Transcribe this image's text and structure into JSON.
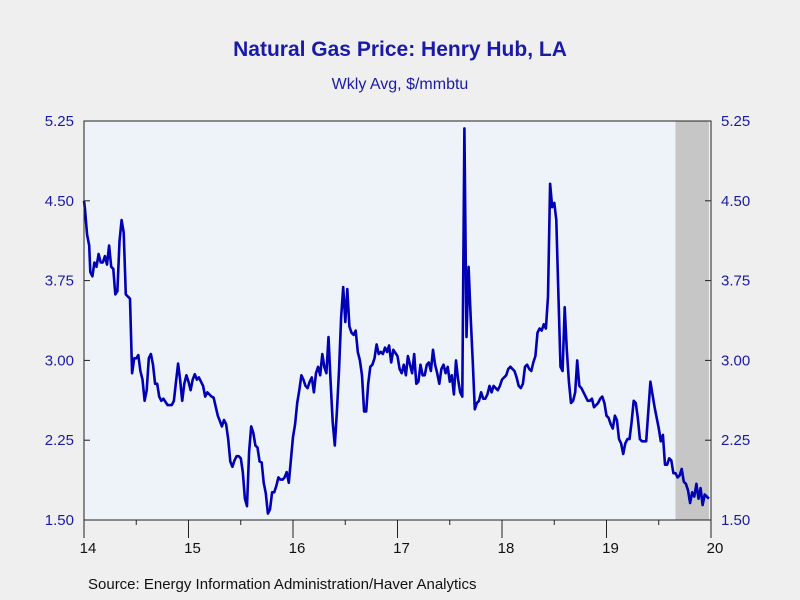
{
  "colors": {
    "background": "#efefef",
    "plot_background": "#eef3fa",
    "text_blue": "#1a1aa8",
    "line": "#0000b4",
    "recession_shading": "#c6c6c6",
    "axis": "#222222"
  },
  "source": "Source:  Energy Information Administration/Haver Analytics",
  "chart_data": {
    "type": "line",
    "title": "Natural Gas Price: Henry Hub, LA",
    "subtitle": "Wkly Avg, $/mmbtu",
    "xlabel": "",
    "ylabel": "",
    "x_tick_labels": [
      "14",
      "15",
      "16",
      "17",
      "18",
      "19",
      "20"
    ],
    "x_range": [
      2014.0,
      2020.0
    ],
    "ylim": [
      1.5,
      5.25
    ],
    "y_ticks": [
      1.5,
      2.25,
      3.0,
      3.75,
      4.5,
      5.25
    ],
    "y_tick_labels": [
      "1.50",
      "2.25",
      "3.00",
      "3.75",
      "4.50",
      "5.25"
    ],
    "dual_y_axis": true,
    "grid": false,
    "legend": "none",
    "shaded_region": {
      "x_start": 2019.66,
      "x_end": 2019.98
    },
    "series": [
      {
        "x": [
          2014.0,
          2014.01,
          2014.03,
          2014.05,
          2014.06,
          2014.08,
          2014.1,
          2014.12,
          2014.14,
          2014.16,
          2014.18,
          2014.2,
          2014.22,
          2014.24,
          2014.26,
          2014.28,
          2014.3,
          2014.32,
          2014.34,
          2014.36,
          2014.38,
          2014.4,
          2014.42,
          2014.44,
          2014.46,
          2014.48,
          2014.5,
          2014.52,
          2014.54,
          2014.56,
          2014.58,
          2014.6,
          2014.62,
          2014.64,
          2014.66,
          2014.68,
          2014.7,
          2014.72,
          2014.74,
          2014.76,
          2014.8,
          2014.84,
          2014.86,
          2014.88,
          2014.9,
          2014.92,
          2014.94,
          2014.96,
          2014.98,
          2015.0,
          2015.02,
          2015.04,
          2015.06,
          2015.08,
          2015.1,
          2015.12,
          2015.14,
          2015.16,
          2015.18,
          2015.2,
          2015.22,
          2015.24,
          2015.28,
          2015.32,
          2015.34,
          2015.36,
          2015.38,
          2015.4,
          2015.42,
          2015.44,
          2015.46,
          2015.48,
          2015.5,
          2015.52,
          2015.54,
          2015.56,
          2015.58,
          2015.6,
          2015.62,
          2015.64,
          2015.66,
          2015.68,
          2015.7,
          2015.72,
          2015.74,
          2015.76,
          2015.78,
          2015.8,
          2015.82,
          2015.84,
          2015.86,
          2015.88,
          2015.9,
          2015.92,
          2015.94,
          2015.96,
          2016.0,
          2016.02,
          2016.04,
          2016.06,
          2016.08,
          2016.1,
          2016.12,
          2016.14,
          2016.16,
          2016.18,
          2016.2,
          2016.22,
          2016.24,
          2016.26,
          2016.28,
          2016.3,
          2016.32,
          2016.34,
          2016.36,
          2016.38,
          2016.4,
          2016.42,
          2016.44,
          2016.46,
          2016.48,
          2016.5,
          2016.52,
          2016.54,
          2016.56,
          2016.58,
          2016.6,
          2016.62,
          2016.64,
          2016.66,
          2016.68,
          2016.7,
          2016.72,
          2016.74,
          2016.76,
          2016.78,
          2016.8,
          2016.82,
          2016.84,
          2016.86,
          2016.88,
          2016.9,
          2016.92,
          2016.94,
          2016.96,
          2017.0,
          2017.02,
          2017.04,
          2017.06,
          2017.08,
          2017.1,
          2017.12,
          2017.14,
          2017.16,
          2017.18,
          2017.2,
          2017.22,
          2017.24,
          2017.26,
          2017.28,
          2017.3,
          2017.32,
          2017.34,
          2017.36,
          2017.38,
          2017.4,
          2017.42,
          2017.44,
          2017.46,
          2017.48,
          2017.5,
          2017.52,
          2017.54,
          2017.56,
          2017.58,
          2017.6,
          2017.62,
          2017.64,
          2017.66,
          2017.68,
          2017.7,
          2017.72,
          2017.74,
          2017.76,
          2017.78,
          2017.8,
          2017.82,
          2017.84,
          2017.86,
          2017.88,
          2017.9,
          2017.92,
          2017.94,
          2017.96,
          2017.98,
          2018.0,
          2018.02,
          2018.04,
          2018.06,
          2018.08,
          2018.1,
          2018.12,
          2018.14,
          2018.16,
          2018.18,
          2018.2,
          2018.22,
          2018.24,
          2018.26,
          2018.28,
          2018.3,
          2018.32,
          2018.34,
          2018.36,
          2018.38,
          2018.4,
          2018.42,
          2018.44,
          2018.46,
          2018.48,
          2018.5,
          2018.52,
          2018.54,
          2018.56,
          2018.58,
          2018.6,
          2018.62,
          2018.64,
          2018.66,
          2018.68,
          2018.7,
          2018.72,
          2018.74,
          2018.76,
          2018.78,
          2018.8,
          2018.82,
          2018.84,
          2018.86,
          2018.88,
          2018.9,
          2018.92,
          2018.94,
          2018.96,
          2018.98,
          2019.0,
          2019.02,
          2019.04,
          2019.06,
          2019.08,
          2019.1,
          2019.12,
          2019.14,
          2019.16,
          2019.18,
          2019.2,
          2019.22,
          2019.24,
          2019.26,
          2019.28,
          2019.3,
          2019.32,
          2019.34,
          2019.36,
          2019.38,
          2019.4,
          2019.42,
          2019.44,
          2019.46,
          2019.48,
          2019.5,
          2019.52,
          2019.54,
          2019.56,
          2019.58,
          2019.6,
          2019.62,
          2019.64,
          2019.66,
          2019.68,
          2019.7,
          2019.72,
          2019.74,
          2019.76,
          2019.78,
          2019.8,
          2019.82,
          2019.84,
          2019.86,
          2019.88,
          2019.9,
          2019.92,
          2019.94,
          2019.96,
          2019.98
        ],
        "values": [
          4.5,
          4.42,
          4.18,
          4.08,
          3.83,
          3.79,
          3.92,
          3.88,
          4.0,
          3.92,
          3.92,
          3.98,
          3.9,
          4.08,
          3.88,
          3.86,
          3.62,
          3.65,
          4.12,
          4.32,
          4.2,
          3.62,
          3.6,
          3.58,
          2.88,
          3.02,
          3.02,
          3.05,
          2.9,
          2.82,
          2.62,
          2.72,
          3.02,
          3.06,
          2.96,
          2.78,
          2.78,
          2.66,
          2.62,
          2.64,
          2.58,
          2.58,
          2.62,
          2.8,
          2.97,
          2.82,
          2.62,
          2.78,
          2.86,
          2.8,
          2.72,
          2.82,
          2.87,
          2.82,
          2.84,
          2.8,
          2.76,
          2.66,
          2.7,
          2.68,
          2.66,
          2.65,
          2.48,
          2.38,
          2.44,
          2.4,
          2.26,
          2.05,
          2.0,
          2.06,
          2.1,
          2.1,
          2.08,
          1.95,
          1.7,
          1.63,
          2.14,
          2.38,
          2.32,
          2.2,
          2.18,
          2.05,
          2.04,
          1.85,
          1.75,
          1.56,
          1.6,
          1.76,
          1.76,
          1.82,
          1.9,
          1.88,
          1.88,
          1.9,
          1.95,
          1.85,
          2.28,
          2.4,
          2.6,
          2.72,
          2.86,
          2.82,
          2.76,
          2.74,
          2.8,
          2.84,
          2.7,
          2.88,
          2.94,
          2.86,
          3.06,
          2.94,
          2.88,
          3.22,
          2.8,
          2.42,
          2.2,
          2.52,
          2.9,
          3.4,
          3.69,
          3.36,
          3.67,
          3.32,
          3.26,
          3.24,
          3.28,
          3.08,
          3.0,
          2.86,
          2.52,
          2.52,
          2.78,
          2.94,
          2.96,
          3.02,
          3.15,
          3.06,
          3.08,
          3.06,
          3.12,
          3.08,
          3.14,
          2.98,
          3.1,
          3.04,
          2.92,
          2.88,
          2.96,
          2.86,
          3.04,
          2.96,
          2.88,
          3.06,
          2.78,
          2.8,
          2.96,
          2.86,
          2.86,
          2.96,
          2.98,
          2.9,
          3.1,
          2.96,
          2.88,
          2.78,
          2.92,
          2.96,
          2.88,
          2.94,
          2.8,
          2.86,
          2.68,
          3.0,
          2.82,
          2.7,
          2.66,
          5.18,
          3.22,
          3.88,
          3.4,
          3.0,
          2.54,
          2.6,
          2.62,
          2.7,
          2.64,
          2.64,
          2.68,
          2.76,
          2.7,
          2.76,
          2.74,
          2.72,
          2.76,
          2.82,
          2.84,
          2.86,
          2.92,
          2.94,
          2.92,
          2.9,
          2.84,
          2.76,
          2.74,
          2.78,
          2.94,
          2.96,
          2.92,
          2.9,
          2.98,
          3.04,
          3.26,
          3.3,
          3.28,
          3.34,
          3.3,
          3.6,
          4.66,
          4.44,
          4.48,
          4.32,
          3.62,
          2.94,
          2.9,
          3.5,
          3.1,
          2.8,
          2.6,
          2.62,
          2.7,
          3.0,
          2.76,
          2.74,
          2.7,
          2.66,
          2.62,
          2.62,
          2.64,
          2.56,
          2.58,
          2.6,
          2.64,
          2.66,
          2.6,
          2.48,
          2.46,
          2.4,
          2.36,
          2.48,
          2.44,
          2.26,
          2.22,
          2.12,
          2.22,
          2.26,
          2.26,
          2.42,
          2.62,
          2.6,
          2.46,
          2.26,
          2.24,
          2.24,
          2.24,
          2.52,
          2.8,
          2.68,
          2.56,
          2.46,
          2.36,
          2.24,
          2.3,
          2.02,
          2.02,
          2.08,
          2.06,
          1.94,
          1.94,
          1.9,
          1.92,
          1.98,
          1.86,
          1.84,
          1.78,
          1.66,
          1.76,
          1.72,
          1.84,
          1.7,
          1.8,
          1.64,
          1.74,
          1.72,
          1.7
        ]
      }
    ]
  }
}
